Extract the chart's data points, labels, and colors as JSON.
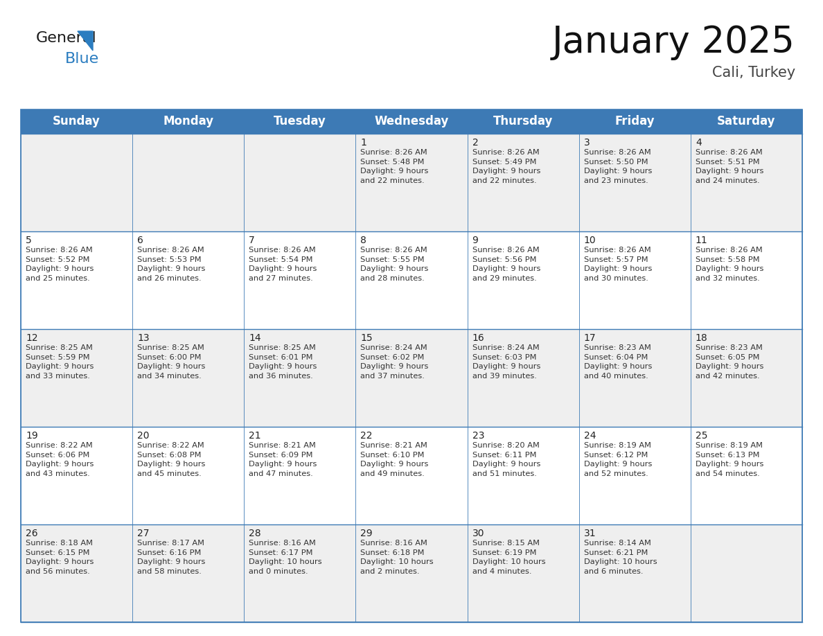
{
  "title": "January 2025",
  "subtitle": "Cali, Turkey",
  "header_color": "#3d7ab5",
  "header_text_color": "#ffffff",
  "border_color": "#3d7ab5",
  "row_colors": [
    "#efefef",
    "#ffffff",
    "#efefef",
    "#ffffff",
    "#efefef"
  ],
  "days_of_week": [
    "Sunday",
    "Monday",
    "Tuesday",
    "Wednesday",
    "Thursday",
    "Friday",
    "Saturday"
  ],
  "title_fontsize": 38,
  "subtitle_fontsize": 15,
  "header_fontsize": 12,
  "cell_fontsize": 8.2,
  "day_num_fontsize": 10,
  "calendar_data": [
    [
      {
        "day": "",
        "info": ""
      },
      {
        "day": "",
        "info": ""
      },
      {
        "day": "",
        "info": ""
      },
      {
        "day": "1",
        "info": "Sunrise: 8:26 AM\nSunset: 5:48 PM\nDaylight: 9 hours\nand 22 minutes."
      },
      {
        "day": "2",
        "info": "Sunrise: 8:26 AM\nSunset: 5:49 PM\nDaylight: 9 hours\nand 22 minutes."
      },
      {
        "day": "3",
        "info": "Sunrise: 8:26 AM\nSunset: 5:50 PM\nDaylight: 9 hours\nand 23 minutes."
      },
      {
        "day": "4",
        "info": "Sunrise: 8:26 AM\nSunset: 5:51 PM\nDaylight: 9 hours\nand 24 minutes."
      }
    ],
    [
      {
        "day": "5",
        "info": "Sunrise: 8:26 AM\nSunset: 5:52 PM\nDaylight: 9 hours\nand 25 minutes."
      },
      {
        "day": "6",
        "info": "Sunrise: 8:26 AM\nSunset: 5:53 PM\nDaylight: 9 hours\nand 26 minutes."
      },
      {
        "day": "7",
        "info": "Sunrise: 8:26 AM\nSunset: 5:54 PM\nDaylight: 9 hours\nand 27 minutes."
      },
      {
        "day": "8",
        "info": "Sunrise: 8:26 AM\nSunset: 5:55 PM\nDaylight: 9 hours\nand 28 minutes."
      },
      {
        "day": "9",
        "info": "Sunrise: 8:26 AM\nSunset: 5:56 PM\nDaylight: 9 hours\nand 29 minutes."
      },
      {
        "day": "10",
        "info": "Sunrise: 8:26 AM\nSunset: 5:57 PM\nDaylight: 9 hours\nand 30 minutes."
      },
      {
        "day": "11",
        "info": "Sunrise: 8:26 AM\nSunset: 5:58 PM\nDaylight: 9 hours\nand 32 minutes."
      }
    ],
    [
      {
        "day": "12",
        "info": "Sunrise: 8:25 AM\nSunset: 5:59 PM\nDaylight: 9 hours\nand 33 minutes."
      },
      {
        "day": "13",
        "info": "Sunrise: 8:25 AM\nSunset: 6:00 PM\nDaylight: 9 hours\nand 34 minutes."
      },
      {
        "day": "14",
        "info": "Sunrise: 8:25 AM\nSunset: 6:01 PM\nDaylight: 9 hours\nand 36 minutes."
      },
      {
        "day": "15",
        "info": "Sunrise: 8:24 AM\nSunset: 6:02 PM\nDaylight: 9 hours\nand 37 minutes."
      },
      {
        "day": "16",
        "info": "Sunrise: 8:24 AM\nSunset: 6:03 PM\nDaylight: 9 hours\nand 39 minutes."
      },
      {
        "day": "17",
        "info": "Sunrise: 8:23 AM\nSunset: 6:04 PM\nDaylight: 9 hours\nand 40 minutes."
      },
      {
        "day": "18",
        "info": "Sunrise: 8:23 AM\nSunset: 6:05 PM\nDaylight: 9 hours\nand 42 minutes."
      }
    ],
    [
      {
        "day": "19",
        "info": "Sunrise: 8:22 AM\nSunset: 6:06 PM\nDaylight: 9 hours\nand 43 minutes."
      },
      {
        "day": "20",
        "info": "Sunrise: 8:22 AM\nSunset: 6:08 PM\nDaylight: 9 hours\nand 45 minutes."
      },
      {
        "day": "21",
        "info": "Sunrise: 8:21 AM\nSunset: 6:09 PM\nDaylight: 9 hours\nand 47 minutes."
      },
      {
        "day": "22",
        "info": "Sunrise: 8:21 AM\nSunset: 6:10 PM\nDaylight: 9 hours\nand 49 minutes."
      },
      {
        "day": "23",
        "info": "Sunrise: 8:20 AM\nSunset: 6:11 PM\nDaylight: 9 hours\nand 51 minutes."
      },
      {
        "day": "24",
        "info": "Sunrise: 8:19 AM\nSunset: 6:12 PM\nDaylight: 9 hours\nand 52 minutes."
      },
      {
        "day": "25",
        "info": "Sunrise: 8:19 AM\nSunset: 6:13 PM\nDaylight: 9 hours\nand 54 minutes."
      }
    ],
    [
      {
        "day": "26",
        "info": "Sunrise: 8:18 AM\nSunset: 6:15 PM\nDaylight: 9 hours\nand 56 minutes."
      },
      {
        "day": "27",
        "info": "Sunrise: 8:17 AM\nSunset: 6:16 PM\nDaylight: 9 hours\nand 58 minutes."
      },
      {
        "day": "28",
        "info": "Sunrise: 8:16 AM\nSunset: 6:17 PM\nDaylight: 10 hours\nand 0 minutes."
      },
      {
        "day": "29",
        "info": "Sunrise: 8:16 AM\nSunset: 6:18 PM\nDaylight: 10 hours\nand 2 minutes."
      },
      {
        "day": "30",
        "info": "Sunrise: 8:15 AM\nSunset: 6:19 PM\nDaylight: 10 hours\nand 4 minutes."
      },
      {
        "day": "31",
        "info": "Sunrise: 8:14 AM\nSunset: 6:21 PM\nDaylight: 10 hours\nand 6 minutes."
      },
      {
        "day": "",
        "info": ""
      }
    ]
  ]
}
